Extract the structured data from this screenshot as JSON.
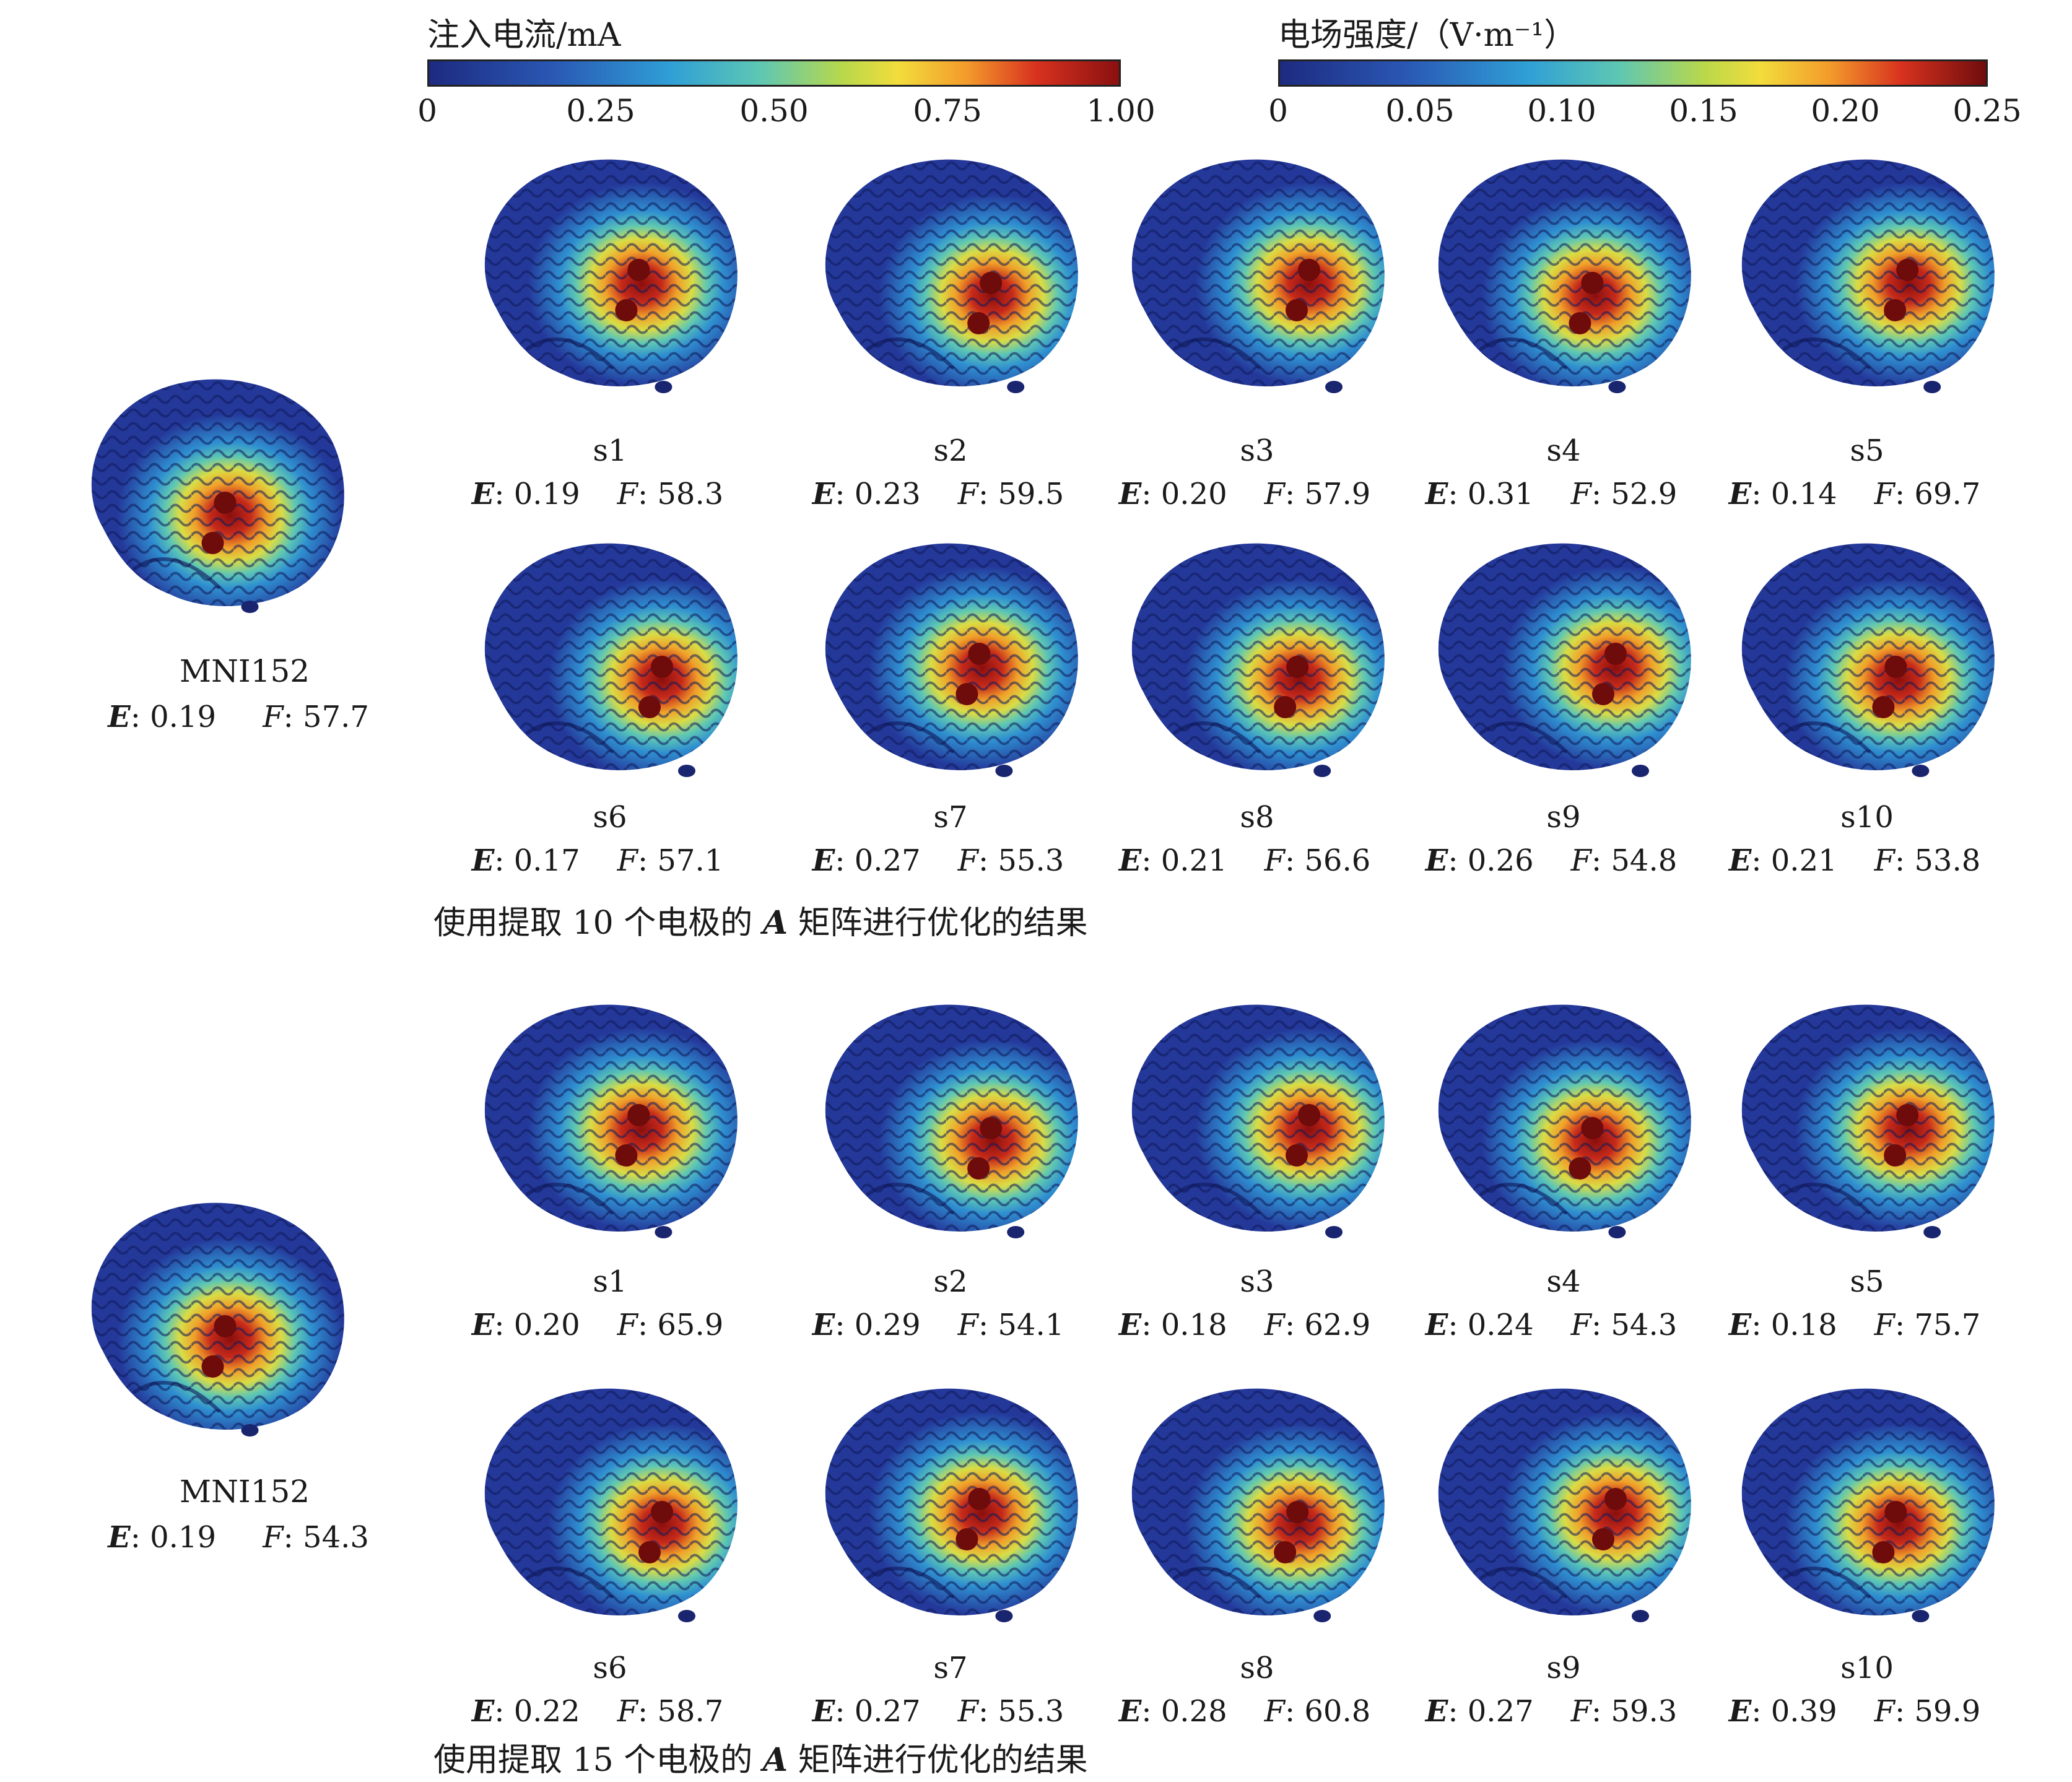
{
  "colorbars": {
    "current": {
      "title": "注入电流/mA",
      "ticks": [
        "0",
        "0.25",
        "0.50",
        "0.75",
        "1.00"
      ]
    },
    "field": {
      "title": "电场强度/（V·m⁻¹）",
      "ticks": [
        "0",
        "0.05",
        "0.10",
        "0.15",
        "0.20",
        "0.25"
      ]
    }
  },
  "section1": {
    "caption_pre": "使用提取 10 个电极的 ",
    "caption_mat": "A",
    "caption_post": " 矩阵进行优化的结果",
    "mni": {
      "label": "MNI152",
      "E": "0.19",
      "F": "57.7"
    },
    "subjects": [
      {
        "s": "s1",
        "E": "0.19",
        "F": "58.3"
      },
      {
        "s": "s2",
        "E": "0.23",
        "F": "59.5"
      },
      {
        "s": "s3",
        "E": "0.20",
        "F": "57.9"
      },
      {
        "s": "s4",
        "E": "0.31",
        "F": "52.9"
      },
      {
        "s": "s5",
        "E": "0.14",
        "F": "69.7"
      },
      {
        "s": "s6",
        "E": "0.17",
        "F": "57.1"
      },
      {
        "s": "s7",
        "E": "0.27",
        "F": "55.3"
      },
      {
        "s": "s8",
        "E": "0.21",
        "F": "56.6"
      },
      {
        "s": "s9",
        "E": "0.26",
        "F": "54.8"
      },
      {
        "s": "s10",
        "E": "0.21",
        "F": "53.8"
      }
    ]
  },
  "section2": {
    "caption_pre": "使用提取 15 个电极的 ",
    "caption_mat": "A",
    "caption_post": " 矩阵进行优化的结果",
    "mni": {
      "label": "MNI152",
      "E": "0.19",
      "F": "54.3"
    },
    "subjects": [
      {
        "s": "s1",
        "E": "0.20",
        "F": "65.9"
      },
      {
        "s": "s2",
        "E": "0.29",
        "F": "54.1"
      },
      {
        "s": "s3",
        "E": "0.18",
        "F": "62.9"
      },
      {
        "s": "s4",
        "E": "0.24",
        "F": "54.3"
      },
      {
        "s": "s5",
        "E": "0.18",
        "F": "75.7"
      },
      {
        "s": "s6",
        "E": "0.22",
        "F": "58.7"
      },
      {
        "s": "s7",
        "E": "0.27",
        "F": "55.3"
      },
      {
        "s": "s8",
        "E": "0.28",
        "F": "60.8"
      },
      {
        "s": "s9",
        "E": "0.27",
        "F": "59.3"
      },
      {
        "s": "s10",
        "E": "0.39",
        "F": "59.9"
      }
    ]
  },
  "metric_keys": {
    "E": "E",
    "F": "F"
  }
}
